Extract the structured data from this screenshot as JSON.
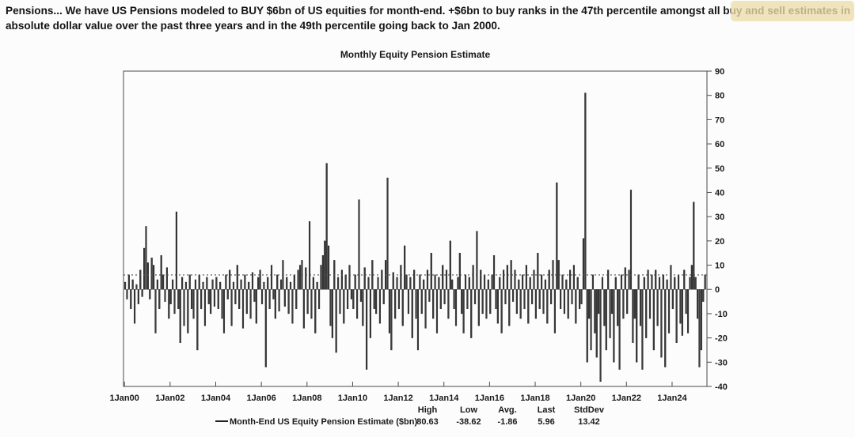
{
  "header": {
    "paragraph": "Pensions... We have US Pensions modeled to BUY $6bn of US equities for month-end. +$6bn to buy ranks in the 47th percentile amongst all buy and sell estimates in absolute dollar value over the past three years and in the 49th percentile going back to Jan 2000."
  },
  "colors": {
    "bar": "#3d3d3d",
    "bar_edge": "#101010",
    "axis": "#4a4a4a",
    "text": "#1a1a1a",
    "reference_line": "#4d4d4d",
    "watermark": "#ecdcaa",
    "background": "#fcfcfc"
  },
  "chart_data": {
    "type": "bar",
    "title": "Monthly Equity Pension Estimate",
    "series_name": "Month-End US Equity Pension Estimate ($bn)",
    "x_start": "Jan 2000",
    "frequency": "monthly",
    "ylim": [
      -40,
      90
    ],
    "y_ticks": [
      90,
      80,
      70,
      60,
      50,
      40,
      30,
      20,
      10,
      0,
      -10,
      -20,
      -30,
      -40
    ],
    "x_tick_labels": [
      "1Jan00",
      "1Jan02",
      "1Jan04",
      "1Jan06",
      "1Jan08",
      "1Jan10",
      "1Jan12",
      "1Jan14",
      "1Jan16",
      "1Jan18",
      "1Jan20",
      "1Jan22",
      "1Jan24"
    ],
    "x_tick_month_index": [
      0,
      24,
      48,
      72,
      96,
      120,
      144,
      168,
      192,
      216,
      240,
      264,
      288
    ],
    "reference_line_value": 5.96,
    "grid": false,
    "legend_position": "bottom",
    "values": [
      3,
      -4,
      6,
      -8,
      4,
      -14,
      2,
      -6,
      8,
      -3,
      17,
      26,
      11,
      -4,
      13,
      10,
      -18,
      4,
      -8,
      14,
      6,
      -5,
      9,
      -12,
      -6,
      4,
      -10,
      32,
      -8,
      -22,
      5,
      -15,
      3,
      -18,
      6,
      -8,
      -12,
      4,
      -25,
      6,
      -8,
      3,
      -15,
      5,
      -6,
      -10,
      4,
      -7,
      5,
      -8,
      3,
      -12,
      -18,
      6,
      -4,
      8,
      -15,
      3,
      -6,
      10,
      -8,
      4,
      -16,
      6,
      -10,
      3,
      -12,
      7,
      -5,
      -14,
      5,
      8,
      -6,
      3,
      -32,
      5,
      -8,
      10,
      -4,
      -12,
      6,
      -9,
      4,
      12,
      -7,
      5,
      -10,
      3,
      -14,
      6,
      -8,
      8,
      10,
      12,
      -16,
      9,
      -10,
      28,
      -12,
      5,
      -18,
      3,
      -8,
      10,
      14,
      20,
      52,
      18,
      -15,
      -20,
      12,
      -26,
      5,
      -10,
      8,
      -14,
      6,
      -8,
      10,
      -4,
      -8,
      6,
      -12,
      37,
      -5,
      -15,
      9,
      -33,
      5,
      -20,
      12,
      -8,
      -10,
      5,
      -14,
      8,
      -6,
      12,
      46,
      -18,
      -25,
      7,
      -12,
      5,
      -8,
      10,
      -15,
      18,
      6,
      -10,
      5,
      -20,
      8,
      -12,
      -25,
      6,
      -10,
      4,
      -16,
      8,
      -5,
      15,
      -12,
      6,
      -18,
      5,
      -8,
      10,
      -6,
      8,
      -12,
      20,
      4,
      -8,
      -15,
      5,
      15,
      -10,
      -18,
      6,
      -8,
      5,
      -20,
      10,
      -6,
      24,
      -15,
      8,
      -10,
      6,
      -12,
      4,
      -10,
      6,
      14,
      -8,
      -14,
      5,
      -18,
      8,
      -6,
      10,
      -15,
      12,
      -5,
      8,
      -10,
      4,
      -12,
      6,
      -8,
      10,
      -14,
      5,
      -6,
      8,
      -12,
      15,
      -8,
      6,
      -10,
      4,
      -14,
      8,
      -6,
      12,
      -18,
      44,
      12,
      -8,
      6,
      -10,
      4,
      -12,
      8,
      -6,
      10,
      -14,
      5,
      -8,
      -6,
      21,
      81,
      -30,
      -12,
      -25,
      6,
      -18,
      -28,
      -10,
      -38,
      5,
      -15,
      -25,
      8,
      -20,
      -10,
      -30,
      5,
      -15,
      -33,
      6,
      -12,
      9,
      -10,
      8,
      41,
      -22,
      -12,
      -30,
      6,
      -15,
      -33,
      5,
      -20,
      8,
      -12,
      6,
      -25,
      8,
      -15,
      5,
      -28,
      6,
      -32,
      4,
      -18,
      10,
      -8,
      5,
      -22,
      6,
      -14,
      -19,
      8,
      -10,
      -18,
      5,
      10,
      36,
      5,
      -12,
      -32,
      -25,
      -5,
      6
    ],
    "stats": {
      "headers": [
        "High",
        "Low",
        "Avg.",
        "Last",
        "StdDev"
      ],
      "values": [
        "80.63",
        "-38.62",
        "-1.86",
        "5.96",
        "13.42"
      ]
    }
  }
}
